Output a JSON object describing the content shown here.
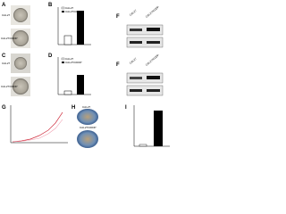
{
  "panels": [
    {
      "letter": "A",
      "labels": [
        "CAL27",
        "CAL27/CDDP"
      ]
    },
    {
      "letter": "B",
      "legend": [
        "CAL27",
        "CAL27/CDDP"
      ]
    },
    {
      "letter": "F",
      "lanes": [
        "CAL27",
        "CAL27/CDDP"
      ]
    },
    {
      "letter": "C",
      "labels": [
        "CAL27",
        "CAL27/CDDP"
      ]
    },
    {
      "letter": "D",
      "legend": [
        "CAL27",
        "CAL27/CDDP"
      ]
    },
    {
      "letter": "F",
      "lanes": [
        "CAL27",
        "CAL27/CDDP"
      ]
    },
    {
      "letter": "G"
    },
    {
      "letter": "H",
      "labels": [
        "CAL27",
        "CAL27/CDDP"
      ]
    },
    {
      "letter": "I"
    }
  ]
}
